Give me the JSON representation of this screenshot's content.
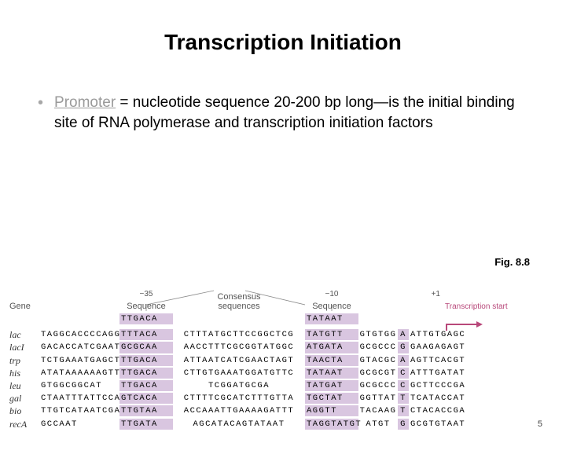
{
  "title": "Transcription Initiation",
  "bullet": {
    "promoter_word": "Promoter",
    "rest": " = nucleotide sequence 20-200 bp long—is the initial binding site of RNA polymerase and transcription initiation factors"
  },
  "figure_caption": "Fig. 8.8",
  "headers": {
    "gene": "Gene",
    "minus35_num": "−35",
    "minus35_word": "Sequence",
    "consensus": "Consensus",
    "consensus2": "sequences",
    "minus10_num": "−10",
    "minus10_word": "Sequence",
    "plus1": "+1",
    "ts": "Transcription start"
  },
  "consensus": {
    "box35": "TTGACA",
    "box10": "TATAAT"
  },
  "colors": {
    "highlight": "#d9c6e0",
    "ts_label": "#b8487a",
    "header_text": "#555555",
    "background": "#ffffff"
  },
  "genes": [
    {
      "name": "lac",
      "pre": "TAGGCACCCCAGGC",
      "b35": "TTTACA",
      "mid": "CTTTATGCTTCCGGCTCG",
      "b10": "TATGTT",
      "post1": "GTGTGG",
      "plus1": "A",
      "tail": "ATTGTGAGC"
    },
    {
      "name": "lacI",
      "pre": "GACACCATCGAATG",
      "b35": "GCGCAA",
      "mid": "AACCTTTCGCGGTATGGC",
      "b10": "ATGATA",
      "post1": "GCGCCC",
      "plus1": "G",
      "tail": "GAAGAGAGT"
    },
    {
      "name": "trp",
      "pre": "TCTGAAATGAGCTG",
      "b35": "TTGACA",
      "mid": "ATTAATCATCGAACTAGT",
      "b10": "TAACTA",
      "post1": "GTACGC",
      "plus1": "A",
      "tail": "AGTTCACGT"
    },
    {
      "name": "his",
      "pre": "ATATAAAAAAGTTC",
      "b35": "TTGACA",
      "mid": "CTTGTGAAATGGATGTTC",
      "b10": "TATAAT",
      "post1": "GCGCGT",
      "plus1": "C",
      "tail": "ATTTGATAT"
    },
    {
      "name": "leu",
      "pre": "    GTGGCGGCAT",
      "b35": "TTGACA",
      "mid": "        TCGGATGCGA",
      "b10": "TATGAT",
      "post1": "GCGCCC",
      "plus1": "C",
      "tail": "GCTTCCCGA"
    },
    {
      "name": "gal",
      "pre": "CTAATTTATTCCAT",
      "b35": "GTCACA",
      "mid": "CTTTTCGCATCTTTGTTA",
      "b10": "TGCTAT",
      "post1": "GGTTAT",
      "plus1": "T",
      "tail": "TCATACCAT"
    },
    {
      "name": "bio",
      "pre": "TTGTCATAATCGAC",
      "b35": "TTGTAA",
      "mid": "ACCAAATTGAAAAGATTT",
      "b10": "AGGTT",
      "post1": "TACAAG",
      "plus1": "T",
      "tail": "CTACACCGA"
    },
    {
      "name": "recA",
      "pre": "        GCCAAT",
      "b35": "TTGATA",
      "mid": "   AGCATACAGTATAAT",
      "b10": "TAGGTATGT",
      "post1": "ATGT",
      "plus1": "G",
      "tail": "GCGTGTAAT"
    }
  ],
  "page_number": "5"
}
